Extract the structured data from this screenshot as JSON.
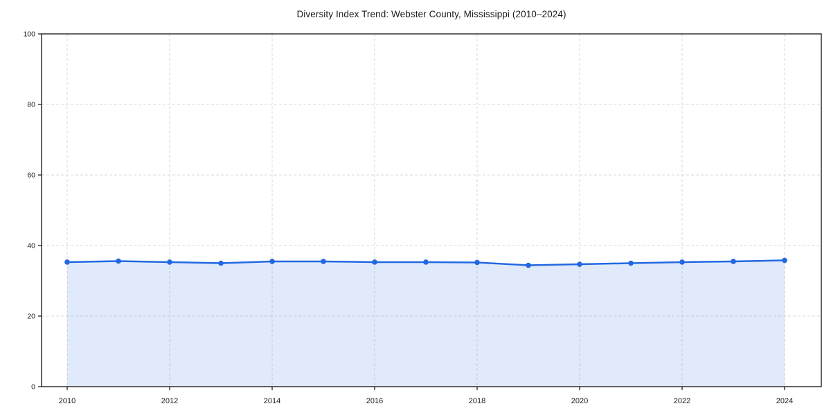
{
  "figure": {
    "background": "#ffffff"
  },
  "chart_data": {
    "type": "area",
    "title": "Diversity Index Trend: Webster County, Mississippi (2010–2024)",
    "xlabel": "",
    "ylabel": "",
    "x": [
      2010,
      2011,
      2012,
      2013,
      2014,
      2015,
      2016,
      2017,
      2018,
      2019,
      2020,
      2021,
      2022,
      2023,
      2024
    ],
    "series": [
      {
        "name": "Diversity Index",
        "values": [
          35.3,
          35.6,
          35.3,
          35.0,
          35.5,
          35.5,
          35.3,
          35.3,
          35.2,
          34.4,
          34.7,
          35.0,
          35.3,
          35.5,
          35.8
        ]
      }
    ],
    "ylim": [
      0,
      100
    ],
    "yticks": [
      0,
      20,
      40,
      60,
      80,
      100
    ],
    "xticks": [
      2010,
      2012,
      2014,
      2016,
      2018,
      2020,
      2022,
      2024
    ],
    "grid": true,
    "grid_style": "dashed",
    "legend": "none",
    "marker": "circle",
    "colors": {
      "line": "#2268e2",
      "marker": "#2268e2",
      "fill": "rgba(34,104,226,0.14)",
      "grid": "#d9d9d9",
      "spine": "#111111",
      "tick_label": "#1a1a1a",
      "title": "#1a1a1a",
      "background": "#ffffff"
    }
  }
}
